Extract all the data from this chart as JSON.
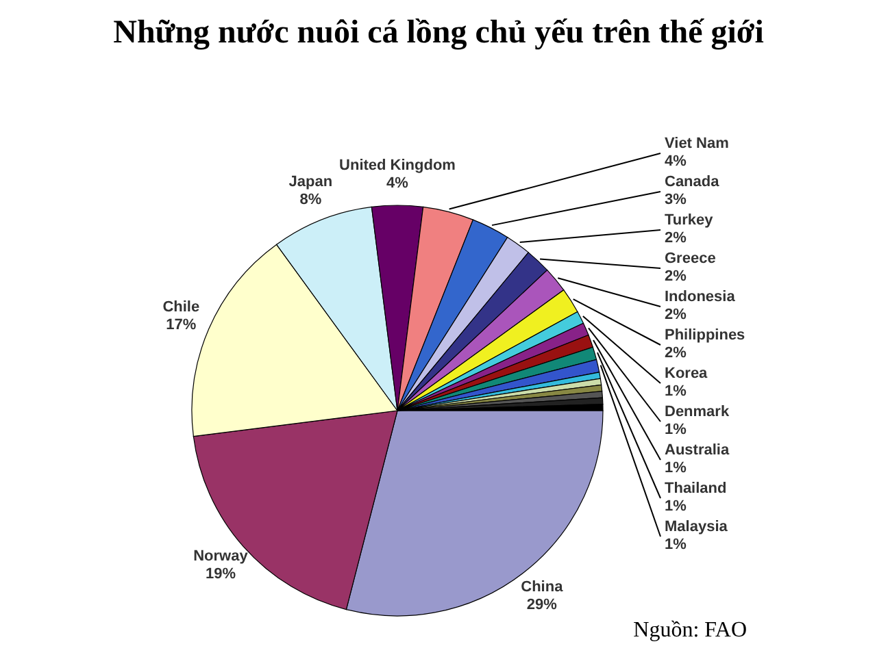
{
  "chart_data": {
    "type": "pie",
    "title": "Những nước nuôi cá lồng chủ yếu trên thế giới",
    "categories": [
      "China",
      "Norway",
      "Chile",
      "Japan",
      "United Kingdom",
      "Viet Nam",
      "Canada",
      "Turkey",
      "Greece",
      "Indonesia",
      "Philippines",
      "Korea",
      "Denmark",
      "Australia",
      "Thailand",
      "Malaysia",
      null,
      null,
      null,
      null,
      null,
      null
    ],
    "values": [
      29,
      19,
      17,
      8,
      4,
      4,
      3,
      2,
      2,
      2,
      2,
      1,
      1,
      1,
      1,
      1,
      0.5,
      0.5,
      0.5,
      0.5,
      0.5,
      0.5
    ],
    "value_labels": [
      "29%",
      "19%",
      "17%",
      "8%",
      "4%",
      "4%",
      "3%",
      "2%",
      "2%",
      "2%",
      "2%",
      "1%",
      "1%",
      "1%",
      "1%",
      "1%",
      null,
      null,
      null,
      null,
      null,
      null
    ],
    "colors": [
      "#9999cc",
      "#993366",
      "#ffffcc",
      "#cceff8",
      "#660066",
      "#f08080",
      "#3366cc",
      "#c0c0e8",
      "#333388",
      "#aa55bb",
      "#f0f020",
      "#44ccdd",
      "#882288",
      "#991111",
      "#118877",
      "#3355cc",
      "#33bbdd",
      "#ccddaa",
      "#888844",
      "#555555",
      "#222222",
      "#000000"
    ],
    "annotations": [
      "Nguồn: FAO"
    ]
  }
}
